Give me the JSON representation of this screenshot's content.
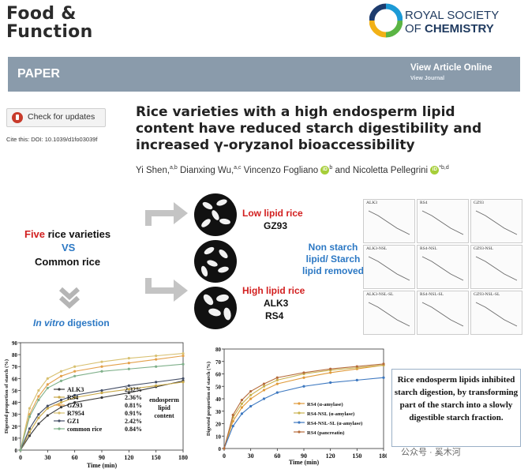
{
  "header": {
    "journal_line1": "Food &",
    "journal_line2": "Function",
    "publisher_line1": "ROYAL SOCIETY",
    "publisher_line2_a": "OF",
    "publisher_line2_b": "CHEMISTRY"
  },
  "banner": {
    "label": "PAPER",
    "view_article": "View Article Online",
    "view_journal": "View Journal"
  },
  "sidebar": {
    "check_updates": "Check for updates",
    "cite": "Cite this: DOI: 10.1039/d1fo03039f"
  },
  "article": {
    "title": "Rice varieties with a high endosperm lipid content have reduced starch digestibility and increased γ-oryzanol bioaccessibility",
    "authors": [
      {
        "name": "Yi Shen,",
        "sup": "a,b",
        "orcid": false
      },
      {
        "name": "Dianxing Wu,",
        "sup": "a,c",
        "orcid": false
      },
      {
        "name": "Vincenzo Fogliano",
        "sup": "b",
        "orcid": true
      },
      {
        "name": "and Nicoletta Pellegrini",
        "sup": "*b,d",
        "orcid": true
      }
    ]
  },
  "graphical_abstract": {
    "five": "Five",
    "rice_varieties": " rice varieties",
    "vs": "VS",
    "common_rice": "Common rice",
    "in_vitro": "In vitro",
    "digestion": " digestion",
    "low_lipid": "Low lipid rice",
    "gz93": "GZ93",
    "non_starch": "Non starch lipid/ Starch lipid removed",
    "high_lipid": "High lipid rice",
    "alk3": "ALK3",
    "rs4": "RS4",
    "panels": [
      "ALK3",
      "RS4",
      "GZ93",
      "ALK3-NSL",
      "RS4-NSL",
      "GZ93-NSL",
      "ALK3-NSL-SL",
      "RS4-NSL-SL",
      "GZ93-NSL-SL"
    ],
    "legend_title": "endosperm lipid content",
    "conclusion": "Rice endosperm lipids inhibited starch digestion, by transforming part of the starch into a slowly digestible starch fraction."
  },
  "chart_data": [
    {
      "type": "line",
      "xlabel": "Time (min)",
      "ylabel": "Digested proportion of starch (%)",
      "xlim": [
        0,
        180
      ],
      "ylim": [
        0,
        90
      ],
      "x_ticks": [
        0,
        30,
        60,
        90,
        120,
        150,
        180
      ],
      "y_ticks": [
        0,
        10,
        20,
        30,
        40,
        50,
        60,
        70,
        80,
        90
      ],
      "x": [
        0,
        10,
        20,
        30,
        45,
        60,
        90,
        120,
        150,
        180
      ],
      "series": [
        {
          "name": "ALK3",
          "lipid": "2.32%",
          "color": "#3a3a3a",
          "values": [
            0,
            12,
            22,
            29,
            36,
            40,
            44,
            48,
            53,
            58
          ]
        },
        {
          "name": "RS4",
          "lipid": "2.36%",
          "color": "#c8a848",
          "values": [
            0,
            15,
            27,
            35,
            40,
            44,
            48,
            51,
            54,
            57
          ]
        },
        {
          "name": "GZ93",
          "lipid": "0.81%",
          "color": "#e3a04a",
          "values": [
            0,
            30,
            45,
            55,
            62,
            66,
            70,
            73,
            76,
            79
          ]
        },
        {
          "name": "R7954",
          "lipid": "0.91%",
          "color": "#d8c070",
          "values": [
            0,
            35,
            50,
            60,
            66,
            70,
            74,
            77,
            79,
            81
          ]
        },
        {
          "name": "GZ1",
          "lipid": "2.42%",
          "color": "#444e66",
          "values": [
            0,
            18,
            30,
            37,
            42,
            46,
            50,
            54,
            57,
            60
          ]
        },
        {
          "name": "common rice",
          "lipid": "0.84%",
          "color": "#7fb08a",
          "values": [
            0,
            28,
            42,
            52,
            58,
            62,
            66,
            68,
            70,
            72
          ]
        }
      ]
    },
    {
      "type": "line",
      "xlabel": "Time (min)",
      "ylabel": "Digested proportion of starch (%)",
      "xlim": [
        0,
        180
      ],
      "ylim": [
        0,
        80
      ],
      "x_ticks": [
        0,
        30,
        60,
        90,
        120,
        150,
        180
      ],
      "y_ticks": [
        0,
        10,
        20,
        30,
        40,
        50,
        60,
        70,
        80
      ],
      "x": [
        0,
        10,
        20,
        30,
        45,
        60,
        90,
        120,
        150,
        180
      ],
      "series": [
        {
          "name": "RS4 (α-amylase)",
          "color": "#e09a3a",
          "values": [
            0,
            22,
            33,
            40,
            47,
            52,
            57,
            61,
            64,
            67
          ]
        },
        {
          "name": "RS4-NSL (α-amylase)",
          "color": "#c9b24f",
          "values": [
            0,
            25,
            36,
            43,
            50,
            55,
            60,
            63,
            65,
            67
          ]
        },
        {
          "name": "RS4-NSL-SL (α-amylase)",
          "color": "#3d78c0",
          "values": [
            0,
            18,
            28,
            34,
            40,
            45,
            50,
            53,
            55,
            57
          ]
        },
        {
          "name": "RS4 (pancreatin)",
          "color": "#b56b3a",
          "values": [
            0,
            27,
            39,
            46,
            52,
            57,
            61,
            64,
            66,
            68
          ]
        }
      ]
    }
  ],
  "watermark": "公众号 · 奚木河"
}
